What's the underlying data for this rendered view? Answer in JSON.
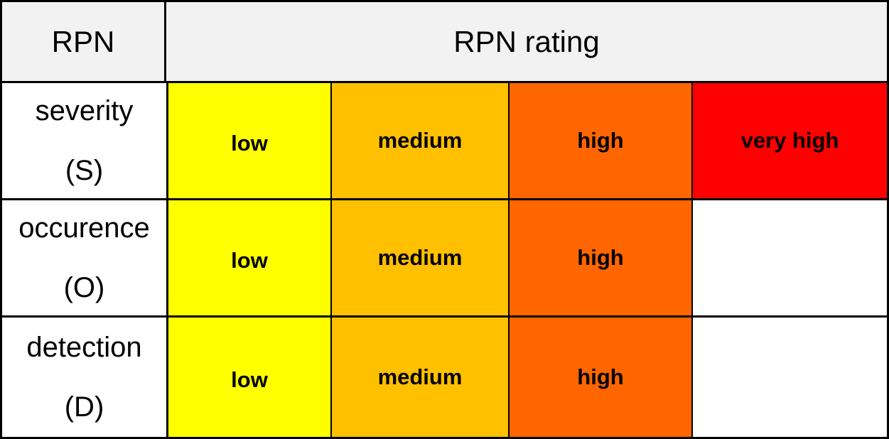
{
  "header": {
    "rpn_label": "RPN",
    "rating_label": "RPN rating"
  },
  "colors": {
    "low": "#ffff00",
    "medium": "#ffc000",
    "high": "#ff6600",
    "very_high": "#ff0000",
    "header_bg": "#f2f2f2"
  },
  "rows": [
    {
      "name": "severity",
      "abbr": "(S)",
      "ratings": [
        "low",
        "medium",
        "high",
        "very high"
      ]
    },
    {
      "name": "occurence",
      "abbr": "(O)",
      "ratings": [
        "low",
        "medium",
        "high",
        ""
      ]
    },
    {
      "name": "detection",
      "abbr": "(D)",
      "ratings": [
        "low",
        "medium",
        "high",
        ""
      ]
    }
  ]
}
